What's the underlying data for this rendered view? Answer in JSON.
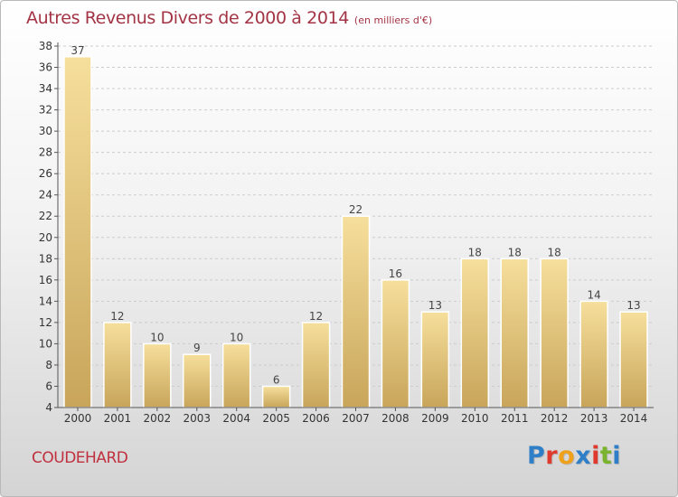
{
  "header": {
    "title": "Autres Revenus Divers de 2000 à 2014",
    "subtitle": "(en milliers d'€)"
  },
  "footer": {
    "commune": "COUDEHARD",
    "logo": "Proxiti",
    "logo_colors": [
      "#2f7fc8",
      "#e03a2e",
      "#f0a11c",
      "#2f7fc8",
      "#e03a2e",
      "#7ab32e",
      "#2f7fc8"
    ]
  },
  "colors": {
    "bar_top": "#f6df9c",
    "bar_bottom": "#c8a55a",
    "axis": "#555555",
    "grid": "#cccccc"
  },
  "chart_data": {
    "type": "bar",
    "categories": [
      "2000",
      "2001",
      "2002",
      "2003",
      "2004",
      "2005",
      "2006",
      "2007",
      "2008",
      "2009",
      "2010",
      "2011",
      "2012",
      "2013",
      "2014"
    ],
    "values": [
      37,
      12,
      10,
      9,
      10,
      6,
      12,
      22,
      16,
      13,
      18,
      18,
      18,
      14,
      13
    ],
    "data_labels": [
      "37",
      "12",
      "10",
      "9",
      "10",
      "6",
      "12",
      "22",
      "16",
      "13",
      "18",
      "18",
      "18",
      "14",
      "13"
    ],
    "yticks": [
      "4",
      "6",
      "8",
      "10",
      "12",
      "14",
      "16",
      "18",
      "20",
      "22",
      "24",
      "26",
      "28",
      "30",
      "32",
      "34",
      "36",
      "38"
    ],
    "ylim": [
      4,
      38
    ],
    "grid": true,
    "legend": "none"
  }
}
